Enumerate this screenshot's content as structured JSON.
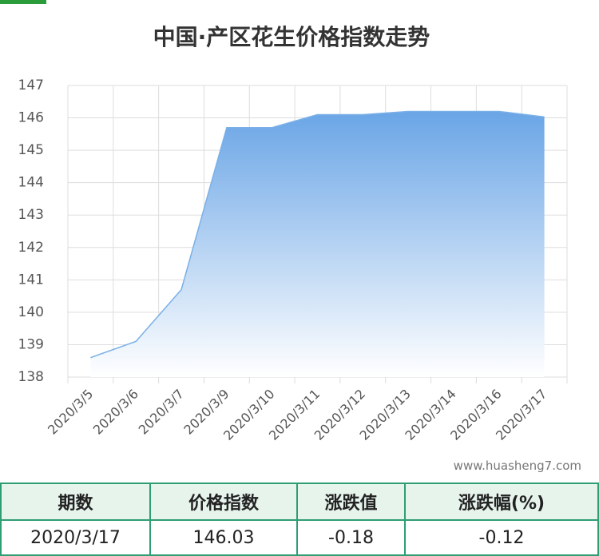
{
  "chart_data": {
    "type": "area",
    "title": "中国·产区花生价格指数走势",
    "categories": [
      "2020/3/5",
      "2020/3/6",
      "2020/3/7",
      "2020/3/9",
      "2020/3/10",
      "2020/3/11",
      "2020/3/12",
      "2020/3/13",
      "2020/3/14",
      "2020/3/16",
      "2020/3/17"
    ],
    "values": [
      138.6,
      139.1,
      140.7,
      145.7,
      145.7,
      146.1,
      146.1,
      146.2,
      146.2,
      146.2,
      146.03
    ],
    "color": "#7ab0e8",
    "ylim": [
      138,
      147
    ],
    "yticks": [
      138,
      139,
      140,
      141,
      142,
      143,
      144,
      145,
      146,
      147
    ],
    "grid": true,
    "watermark": "www.huasheng7.com"
  },
  "table": {
    "header": [
      "期数",
      "价格指数",
      "涨跌值",
      "涨跌幅(%)"
    ],
    "rows": [
      [
        "2020/3/17",
        "146.03",
        "-0.18",
        "-0.12"
      ]
    ]
  }
}
